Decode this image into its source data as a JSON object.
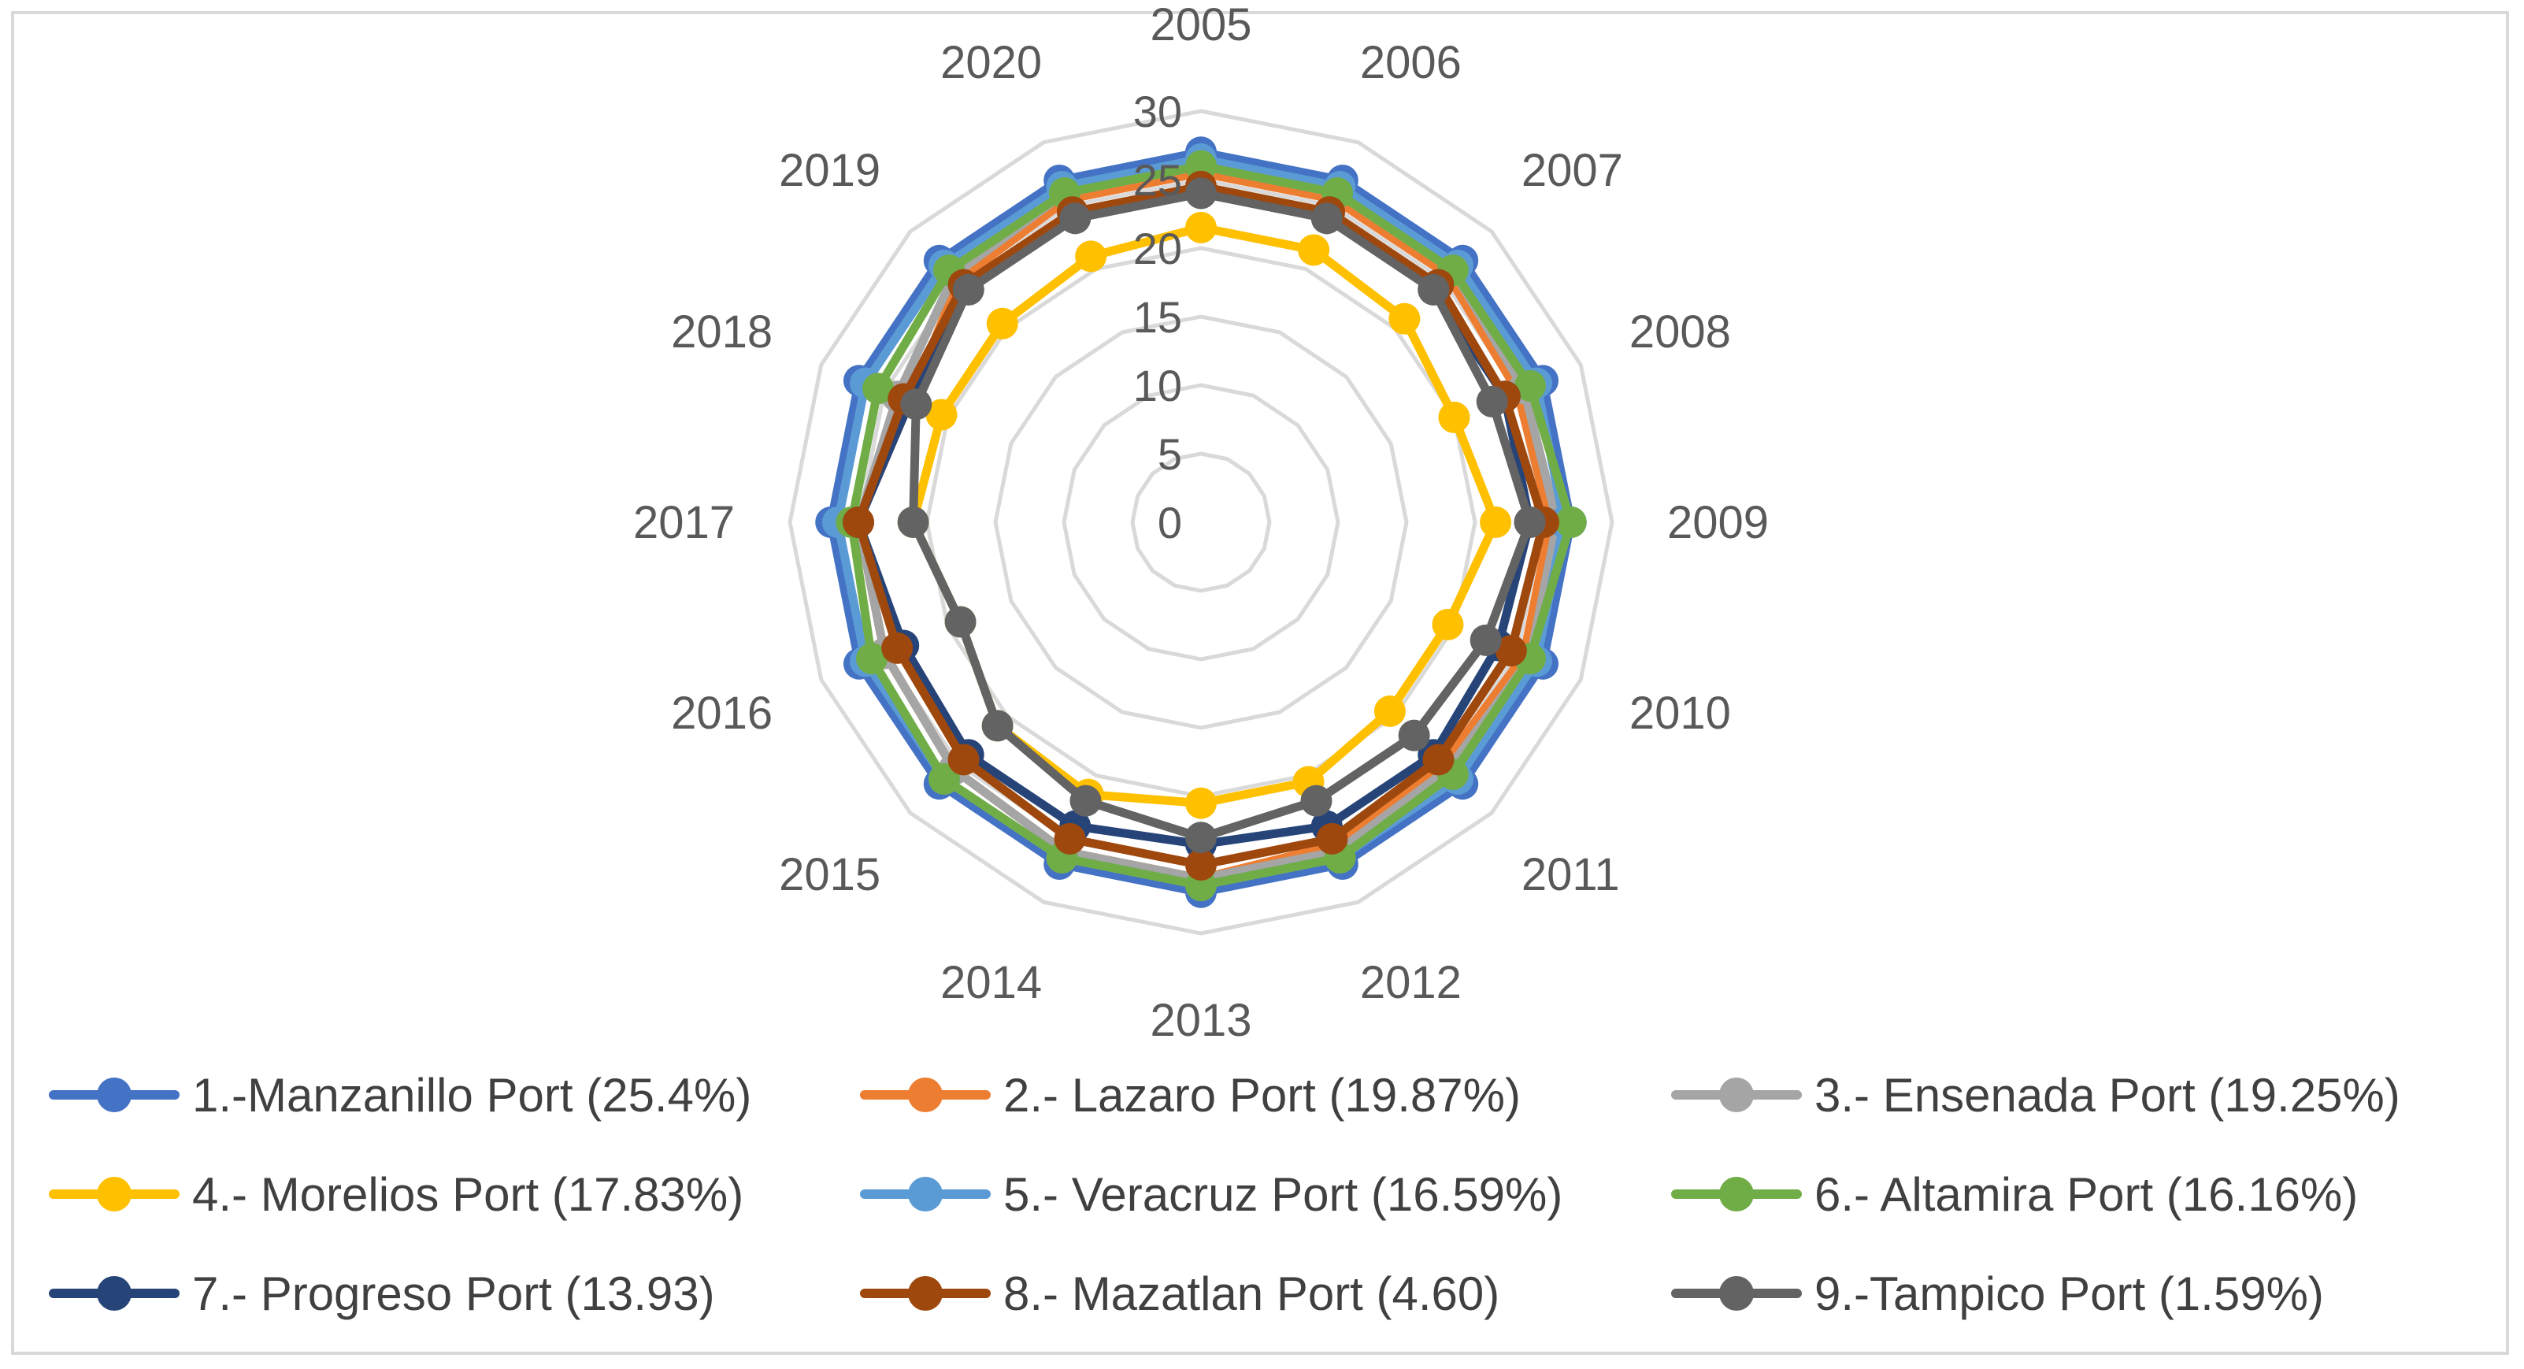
{
  "chart_data": {
    "type": "radar",
    "title": "",
    "categories": [
      "2005",
      "2006",
      "2007",
      "2008",
      "2009",
      "2010",
      "2011",
      "2012",
      "2013",
      "2014",
      "2015",
      "2016",
      "2017",
      "2018",
      "2019",
      "2020"
    ],
    "rlim": [
      0,
      30
    ],
    "rticks": [
      "0",
      "5",
      "10",
      "15",
      "20",
      "25",
      "30"
    ],
    "grid": true,
    "legend_position": "bottom",
    "series": [
      {
        "name": "1.-Manzanillo Port (25.4%)",
        "color": "#4472C4",
        "values": [
          27,
          27,
          27,
          27,
          27,
          27,
          27,
          27,
          27,
          27,
          27,
          27,
          27,
          27,
          27,
          27
        ]
      },
      {
        "name": "2.- Lazaro Port (19.87%)",
        "color": "#ED7D31",
        "values": [
          25.5,
          25.5,
          25.5,
          25,
          25.5,
          25.5,
          25,
          25.5,
          26,
          26,
          25.5,
          25,
          25,
          23,
          25,
          25.5
        ]
      },
      {
        "name": "3.- Ensenada Port (19.25%)",
        "color": "#A5A5A5",
        "values": [
          26,
          26,
          26,
          25.5,
          26,
          26,
          25.5,
          26,
          26,
          26,
          25.5,
          25,
          25,
          24,
          25.5,
          26
        ]
      },
      {
        "name": "4.- Morelios Port (17.83%)",
        "color": "#FFC000",
        "values": [
          21.5,
          21.5,
          21,
          20,
          21.5,
          19.5,
          19.5,
          20.5,
          20.5,
          21.5,
          21,
          19,
          21,
          20.5,
          20.5,
          21
        ]
      },
      {
        "name": "5.- Veracruz Port (16.59%)",
        "color": "#5B9BD5",
        "values": [
          26.5,
          26.5,
          26.5,
          26.5,
          26.5,
          26.5,
          26.5,
          26.5,
          26.5,
          26.5,
          26.5,
          26.5,
          26.5,
          26.5,
          26.5,
          26.5
        ]
      },
      {
        "name": "6.- Altamira Port (16.16%)",
        "color": "#70AD47",
        "values": [
          26,
          26,
          26,
          26,
          27,
          26,
          26,
          26.5,
          26.5,
          26.5,
          26.5,
          26,
          25.5,
          25.5,
          26,
          26
        ]
      },
      {
        "name": "7.- Progreso Port (13.93)",
        "color": "#264478",
        "values": [
          24,
          24,
          24,
          24,
          24,
          23.5,
          24,
          24,
          23.5,
          24,
          24,
          23.5,
          25,
          23,
          24,
          24
        ]
      },
      {
        "name": "8.- Mazatlan Port (4.60)",
        "color": "#9E480E",
        "values": [
          24.5,
          24.5,
          24.5,
          24,
          25,
          24.5,
          24.5,
          25,
          25,
          25,
          24.5,
          24,
          25,
          23.5,
          24.5,
          24.5
        ]
      },
      {
        "name": "9.-Tampico Port (1.59%)",
        "color": "#636363",
        "values": [
          24,
          24,
          24,
          23,
          24,
          22.5,
          22,
          22,
          23,
          22,
          21,
          19,
          21,
          22.5,
          24,
          24
        ]
      }
    ]
  }
}
